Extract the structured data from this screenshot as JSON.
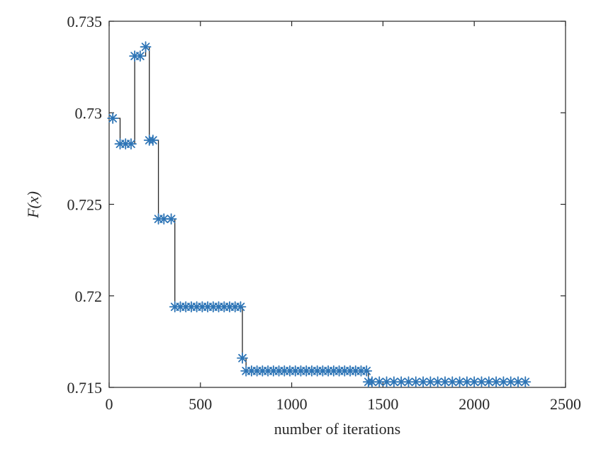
{
  "chart_data": {
    "type": "line",
    "title": "",
    "xlabel": "number of iterations",
    "ylabel": "F(x)",
    "xlim": [
      0,
      2500
    ],
    "ylim": [
      0.715,
      0.735
    ],
    "x_ticks": [
      0,
      500,
      1000,
      1500,
      2000,
      2500
    ],
    "x_tick_labels": [
      "0",
      "500",
      "1000",
      "1500",
      "2000",
      "2500"
    ],
    "y_ticks": [
      0.715,
      0.72,
      0.725,
      0.73,
      0.735
    ],
    "y_tick_labels": [
      "0.715",
      "0.72",
      "0.725",
      "0.73",
      "0.735"
    ],
    "grid": false,
    "line_color": "#262626",
    "marker_color": "#2e75b6",
    "marker": "asterisk",
    "series": [
      {
        "x": [
          20,
          60,
          90,
          120,
          140,
          170,
          200,
          220,
          240,
          270,
          300,
          340,
          360,
          390,
          420,
          450,
          480,
          510,
          540,
          570,
          600,
          630,
          660,
          690,
          720,
          730,
          750,
          780,
          810,
          840,
          870,
          900,
          930,
          960,
          990,
          1020,
          1050,
          1080,
          1110,
          1140,
          1170,
          1200,
          1230,
          1260,
          1290,
          1320,
          1350,
          1380,
          1410,
          1420,
          1440,
          1480,
          1520,
          1560,
          1600,
          1640,
          1680,
          1720,
          1760,
          1800,
          1840,
          1880,
          1920,
          1960,
          2000,
          2040,
          2080,
          2120,
          2160,
          2200,
          2240,
          2280
        ],
        "y": [
          0.7297,
          0.7283,
          0.7283,
          0.7283,
          0.7331,
          0.7331,
          0.7336,
          0.7285,
          0.7285,
          0.7242,
          0.7242,
          0.7242,
          0.7194,
          0.7194,
          0.7194,
          0.7194,
          0.7194,
          0.7194,
          0.7194,
          0.7194,
          0.7194,
          0.7194,
          0.7194,
          0.7194,
          0.7194,
          0.7166,
          0.7159,
          0.7159,
          0.7159,
          0.7159,
          0.7159,
          0.7159,
          0.7159,
          0.7159,
          0.7159,
          0.7159,
          0.7159,
          0.7159,
          0.7159,
          0.7159,
          0.7159,
          0.7159,
          0.7159,
          0.7159,
          0.7159,
          0.7159,
          0.7159,
          0.7159,
          0.7159,
          0.7153,
          0.7153,
          0.7153,
          0.7153,
          0.7153,
          0.7153,
          0.7153,
          0.7153,
          0.7153,
          0.7153,
          0.7153,
          0.7153,
          0.7153,
          0.7153,
          0.7153,
          0.7153,
          0.7153,
          0.7153,
          0.7153,
          0.7153,
          0.7153,
          0.7153,
          0.7153
        ]
      }
    ]
  }
}
